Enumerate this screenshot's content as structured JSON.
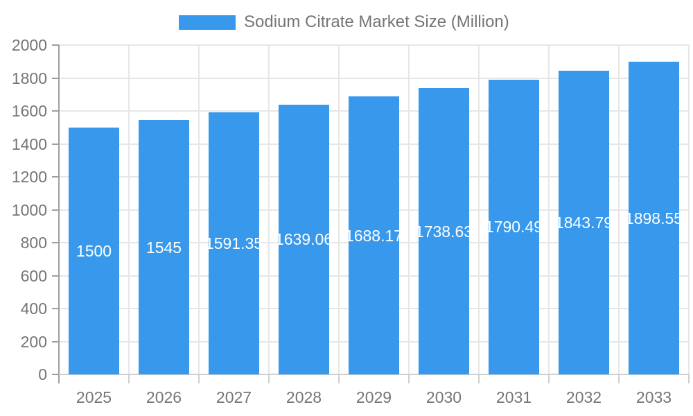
{
  "legend": {
    "label": "Sodium Citrate Market Size (Million)"
  },
  "chart_data": {
    "type": "bar",
    "title": "Sodium Citrate Market Size (Million)",
    "categories": [
      "2025",
      "2026",
      "2027",
      "2028",
      "2029",
      "2030",
      "2031",
      "2032",
      "2033"
    ],
    "series": [
      {
        "name": "Sodium Citrate Market Size (Million)",
        "values": [
          1500,
          1545,
          1591.35,
          1639.06,
          1688.17,
          1738.63,
          1790.49,
          1843.79,
          1898.55
        ]
      }
    ],
    "bar_labels": [
      "1500",
      "1545",
      "1591.35",
      "1639.06",
      "1688.17",
      "1738.63",
      "1790.49",
      "1843.79",
      "1898.55"
    ],
    "xlabel": "",
    "ylabel": "",
    "ylim": [
      0,
      2000
    ],
    "y_ticks": [
      "0",
      "200",
      "400",
      "600",
      "800",
      "1000",
      "1200",
      "1400",
      "1600",
      "1800",
      "2000"
    ],
    "grid": "on",
    "legend_position": "top-center",
    "value_label_position": "inside-center",
    "colors": {
      "bar": "#3899EC",
      "value_label_text": "#FFFFFF",
      "axis_text": "#757575",
      "gridline": "#E6E6E6",
      "axis_line": "#9E9E9E",
      "x_tick_line": "#CFCFCF",
      "background": "#FFFFFF"
    }
  }
}
